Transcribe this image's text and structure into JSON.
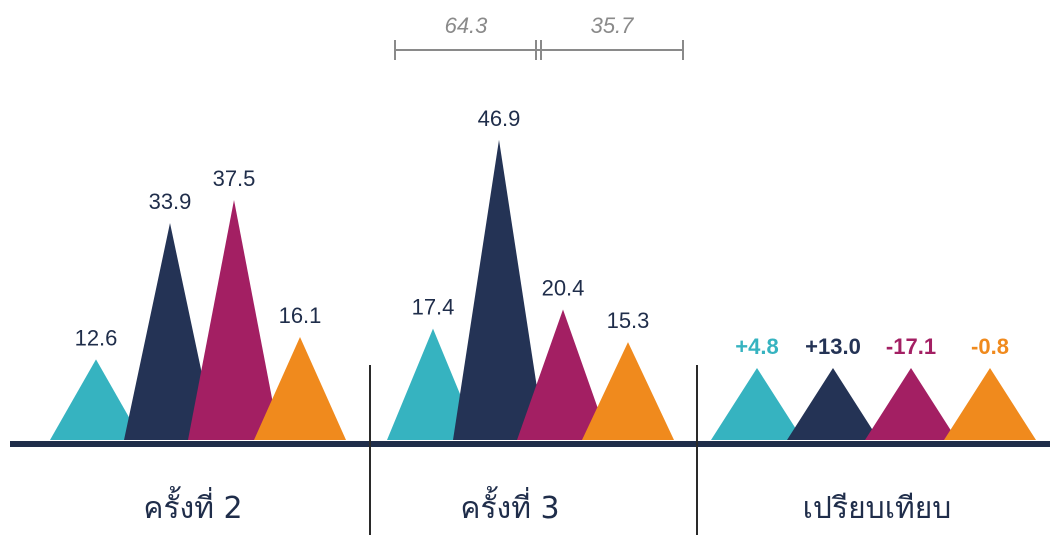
{
  "colors": {
    "teal": "#36b3c0",
    "navy": "#243355",
    "magenta": "#a31f63",
    "orange": "#f08a1d",
    "axis": "#1f2d4a",
    "divider": "#2a2a2a",
    "bracket": "#8a8a8a"
  },
  "chart_data": {
    "type": "triangle-bar",
    "series_colors": [
      "teal",
      "navy",
      "magenta",
      "orange"
    ],
    "groups": [
      {
        "label": "ครั้งที่ 2",
        "values": [
          12.6,
          33.9,
          37.5,
          16.1
        ],
        "value_labels": [
          "12.6",
          "33.9",
          "37.5",
          "16.1"
        ]
      },
      {
        "label": "ครั้งที่ 3",
        "values": [
          17.4,
          46.9,
          20.4,
          15.3
        ],
        "value_labels": [
          "17.4",
          "46.9",
          "20.4",
          "15.3"
        ]
      },
      {
        "label": "เปรียบเทียบ",
        "values": [
          4.8,
          13.0,
          -17.1,
          -0.8
        ],
        "value_labels": [
          "+4.8",
          "+13.0",
          "-17.1",
          "-0.8"
        ]
      }
    ],
    "bracket": {
      "labels": [
        "64.3",
        "35.7"
      ]
    }
  }
}
